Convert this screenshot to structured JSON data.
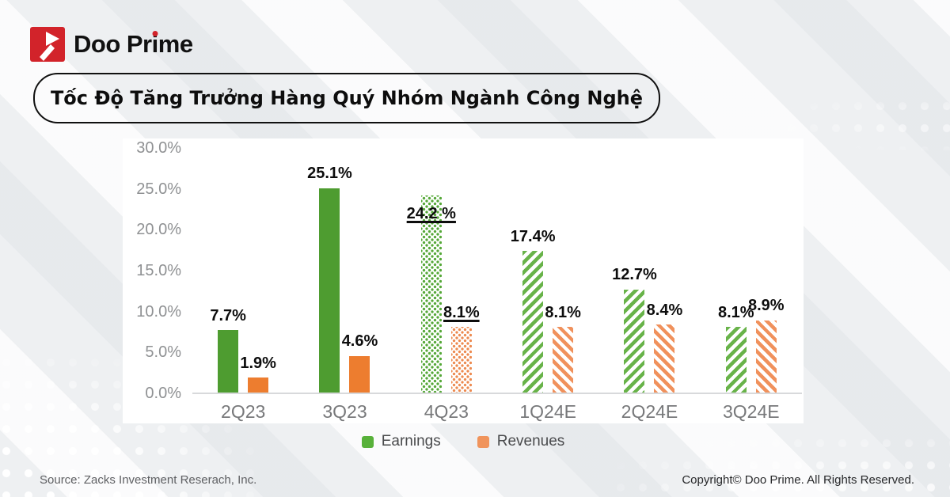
{
  "brand": {
    "name": "Doo Prime",
    "name_parts": {
      "p1": "Doo Pr",
      "i": "i",
      "p2": "me"
    }
  },
  "title": {
    "text": "Tốc Độ Tăng Trưởng Hàng Quý Nhóm Ngành Công Nghệ"
  },
  "footer": {
    "source": "Source: Zacks Investment Reserach, Inc.",
    "copyright": "Copyright© Doo Prime. All Rights Reserved."
  },
  "chart_data": {
    "type": "bar",
    "title": "Tốc Độ Tăng Trưởng Hàng Quý Nhóm Ngành Công Nghệ",
    "categories": [
      "2Q23",
      "3Q23",
      "4Q23",
      "1Q24E",
      "2Q24E",
      "3Q24E"
    ],
    "series": [
      {
        "name": "Earnings",
        "values": [
          7.7,
          25.1,
          24.2,
          17.4,
          12.7,
          8.1
        ],
        "labels": [
          "7.7%",
          "25.1%",
          "24.2 %",
          "17.4%",
          "12.7%",
          "8.1%"
        ],
        "color": "#4e9c30"
      },
      {
        "name": "Revenues",
        "values": [
          1.9,
          4.6,
          8.1,
          8.1,
          8.4,
          8.9
        ],
        "labels": [
          "1.9%",
          "4.6%",
          "8.1%",
          "8.1%",
          "8.4%",
          "8.9%"
        ],
        "color": "#ed7d2f"
      }
    ],
    "bar_styles_by_category": [
      "solid",
      "solid",
      "dotted",
      "hatched",
      "hatched",
      "hatched"
    ],
    "emphasized_category_index": 2,
    "y_ticks": [
      "30.0%",
      "25.0%",
      "20.0%",
      "15.0%",
      "10.0%",
      "5.0%",
      "0.0%"
    ],
    "ylim": [
      0,
      30
    ],
    "grid": false,
    "legend": {
      "position": "bottom",
      "items": [
        {
          "label": "Earnings",
          "color": "#58b13a"
        },
        {
          "label": "Revenues",
          "color": "#f0945c"
        }
      ]
    }
  }
}
